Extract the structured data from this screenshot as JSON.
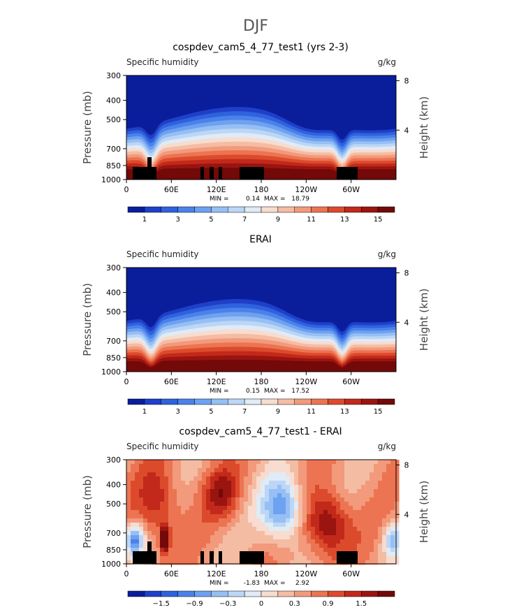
{
  "figure": {
    "main_title": "DJF"
  },
  "labels": {
    "var_name": "Specific humidity",
    "units": "g/kg",
    "left_axis": "Pressure (mb)",
    "right_axis": "Height (km)"
  },
  "axes": {
    "x_ticks": [
      "0",
      "60E",
      "120E",
      "180",
      "120W",
      "60W"
    ],
    "x_tick_lon": [
      0,
      60,
      120,
      180,
      240,
      300
    ],
    "x_range": [
      0,
      360
    ],
    "y_ticks": [
      "300",
      "400",
      "500",
      "700",
      "850",
      "1000"
    ],
    "y_tick_p": [
      300,
      400,
      500,
      700,
      850,
      1000
    ],
    "y_range": [
      300,
      1000
    ],
    "y_scale": "log",
    "height_ticks": [
      "8",
      "4"
    ],
    "height_km": [
      8,
      4
    ]
  },
  "colors": {
    "absolute": [
      "#0a1e9c",
      "#1f3fc9",
      "#2f62dd",
      "#4a82ea",
      "#6ea1f0",
      "#96bff4",
      "#bcd6f6",
      "#e0ebf6",
      "#f7dccf",
      "#f5bca4",
      "#f29a7b",
      "#ec7452",
      "#dc4a2c",
      "#c2291a",
      "#9a1410",
      "#730909"
    ],
    "difference": [
      "#0a1e9c",
      "#1f3fc9",
      "#2f62dd",
      "#4a82ea",
      "#6ea1f0",
      "#96bff4",
      "#bcd6f6",
      "#e0ebf6",
      "#f7dccf",
      "#f5bca4",
      "#f29a7b",
      "#ec7452",
      "#dc4a2c",
      "#c2291a",
      "#9a1410",
      "#730909"
    ]
  },
  "chart_data": [
    {
      "type": "heatmap",
      "title": "cospdev_cam5_4_77_test1 (yrs 2-3)",
      "kind": "absolute",
      "min_label": "MIN =",
      "min_value": "0.14",
      "max_label": "MAX =",
      "max_value": "18.79",
      "colorbar_labels": [
        "1",
        "3",
        "5",
        "7",
        "9",
        "11",
        "13",
        "15"
      ],
      "topography": true
    },
    {
      "type": "heatmap",
      "title": "ERAI",
      "kind": "absolute",
      "min_label": "MIN =",
      "min_value": "0.15",
      "max_label": "MAX =",
      "max_value": "17.52",
      "colorbar_labels": [
        "1",
        "3",
        "5",
        "7",
        "9",
        "11",
        "13",
        "15"
      ],
      "topography": false
    },
    {
      "type": "heatmap",
      "title": "cospdev_cam5_4_77_test1 - ERAI",
      "kind": "difference",
      "min_label": "MIN =",
      "min_value": "-1.83",
      "max_label": "MAX =",
      "max_value": "2.92",
      "colorbar_labels": [
        "−1.5",
        "−0.9",
        "−0.3",
        "0",
        "0.3",
        "0.9",
        "1.5"
      ],
      "topography": true
    }
  ]
}
